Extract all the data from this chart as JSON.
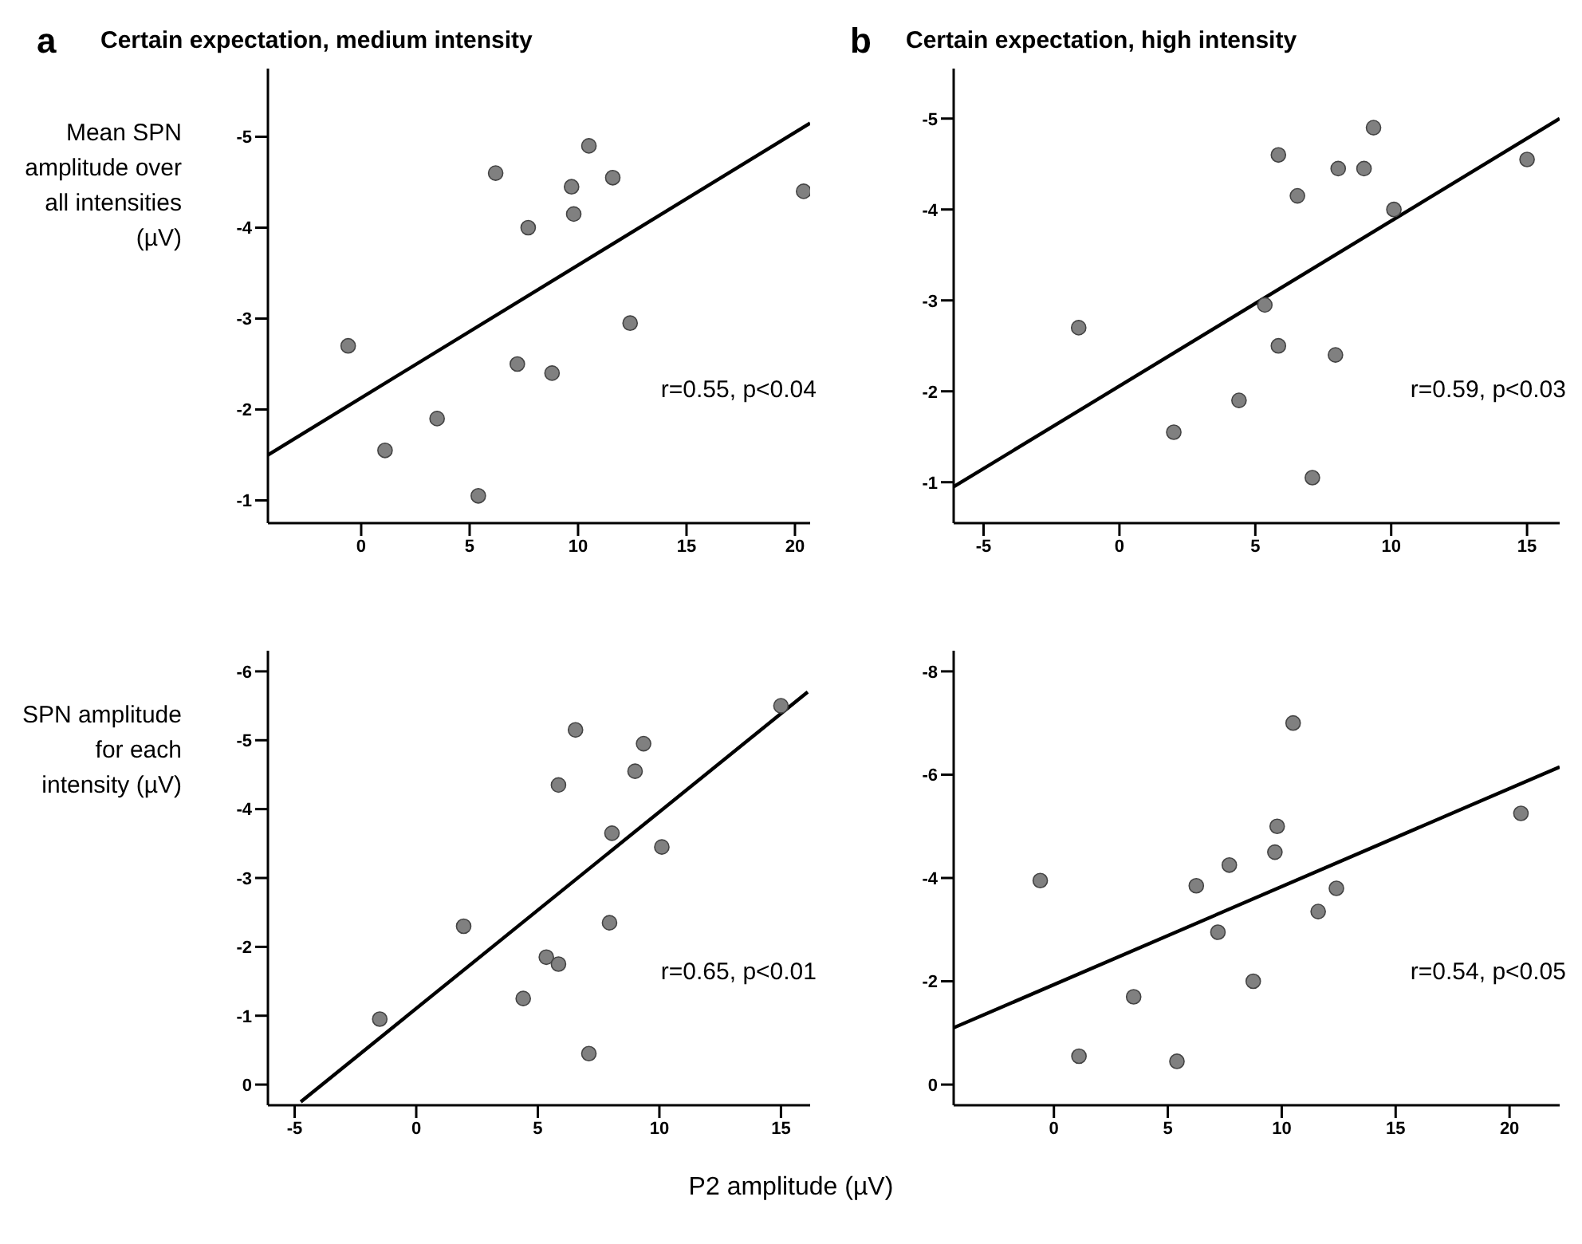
{
  "chart_data": [
    {
      "type": "scatter",
      "title": "Certain expectation, medium intensity",
      "ylabel": "Mean SPN amplitude over all intensities (µV)",
      "annotations": [
        "a",
        "r=0.55, p<0.04"
      ],
      "xlim": [
        -4.3,
        20.7
      ],
      "xticks": [
        0,
        5,
        10,
        15,
        20
      ],
      "ylim": [
        -0.75,
        -5.75
      ],
      "yticks": [
        -5,
        -4,
        -3,
        -2,
        -1
      ],
      "series": [
        {
          "color": "#808080",
          "marker": "circle",
          "x": [
            -0.6,
            1.1,
            3.5,
            5.4,
            6.2,
            7.2,
            7.7,
            8.8,
            9.7,
            9.8,
            10.5,
            11.6,
            12.4,
            20.4
          ],
          "values": [
            -2.7,
            -1.55,
            -1.9,
            -1.05,
            -4.6,
            -2.5,
            -4.0,
            -2.4,
            -4.45,
            -4.15,
            -4.9,
            -4.55,
            -2.95,
            -4.4
          ]
        },
        {
          "type": "line",
          "color": "#000000",
          "x": [
            -4.3,
            20.7
          ],
          "values": [
            -1.5,
            -5.15
          ]
        }
      ]
    },
    {
      "type": "scatter",
      "title": "Certain expectation, high intensity",
      "annotations": [
        "b",
        "r=0.59, p<0.03"
      ],
      "xlim": [
        -6.1,
        16.2
      ],
      "xticks": [
        -5,
        0,
        5,
        10,
        15
      ],
      "ylim": [
        -0.55,
        -5.55
      ],
      "yticks": [
        -5,
        -4,
        -3,
        -2,
        -1
      ],
      "series": [
        {
          "color": "#808080",
          "marker": "circle",
          "x": [
            -1.5,
            2.0,
            4.4,
            5.35,
            5.85,
            5.85,
            6.55,
            7.1,
            8.05,
            7.95,
            9.0,
            9.35,
            10.1,
            15.0
          ],
          "values": [
            -2.7,
            -1.55,
            -1.9,
            -2.95,
            -4.6,
            -2.5,
            -4.15,
            -1.05,
            -4.45,
            -2.4,
            -4.45,
            -4.9,
            -4.0,
            -4.55
          ]
        },
        {
          "type": "line",
          "color": "#000000",
          "x": [
            -6.1,
            16.2
          ],
          "values": [
            -0.95,
            -5.0
          ]
        }
      ]
    },
    {
      "type": "scatter",
      "ylabel": "SPN amplitude for each intensity (µV)",
      "xlabel": "P2 amplitude (µV)",
      "annotations": [
        "r=0.65, p<0.01"
      ],
      "xlim": [
        -6.1,
        16.2
      ],
      "xticks": [
        -5,
        0,
        5,
        10,
        15
      ],
      "ylim": [
        0.3,
        -6.3
      ],
      "yticks": [
        -6,
        -5,
        -4,
        -3,
        -2,
        -1,
        0
      ],
      "series": [
        {
          "color": "#808080",
          "marker": "circle",
          "x": [
            -1.5,
            1.95,
            4.4,
            5.35,
            5.85,
            5.85,
            6.55,
            7.1,
            7.95,
            8.05,
            9.0,
            9.35,
            10.1,
            15.0
          ],
          "values": [
            -0.95,
            -2.3,
            -1.25,
            -1.85,
            -1.75,
            -4.35,
            -5.15,
            -0.45,
            -2.35,
            -3.65,
            -4.55,
            -4.95,
            -3.45,
            -5.5
          ]
        },
        {
          "type": "line",
          "color": "#000000",
          "x": [
            -4.75,
            16.1
          ],
          "values": [
            0.25,
            -5.7
          ]
        }
      ]
    },
    {
      "type": "scatter",
      "annotations": [
        "r=0.54, p<0.05"
      ],
      "xlim": [
        -4.4,
        22.2
      ],
      "xticks": [
        0,
        5,
        10,
        15,
        20
      ],
      "ylim": [
        0.4,
        -8.4
      ],
      "yticks": [
        -8,
        -6,
        -4,
        -2,
        0
      ],
      "series": [
        {
          "color": "#808080",
          "marker": "circle",
          "x": [
            -0.6,
            1.1,
            3.5,
            5.4,
            6.25,
            7.2,
            7.7,
            8.75,
            9.7,
            9.8,
            10.5,
            11.6,
            12.4,
            20.5
          ],
          "values": [
            -3.95,
            -0.55,
            -1.7,
            -0.45,
            -3.85,
            -2.95,
            -4.25,
            -2.0,
            -4.5,
            -5.0,
            -7.0,
            -3.35,
            -3.8,
            -5.25
          ]
        },
        {
          "type": "line",
          "color": "#000000",
          "x": [
            -4.4,
            22.2
          ],
          "values": [
            -1.1,
            -6.15
          ]
        }
      ]
    }
  ]
}
